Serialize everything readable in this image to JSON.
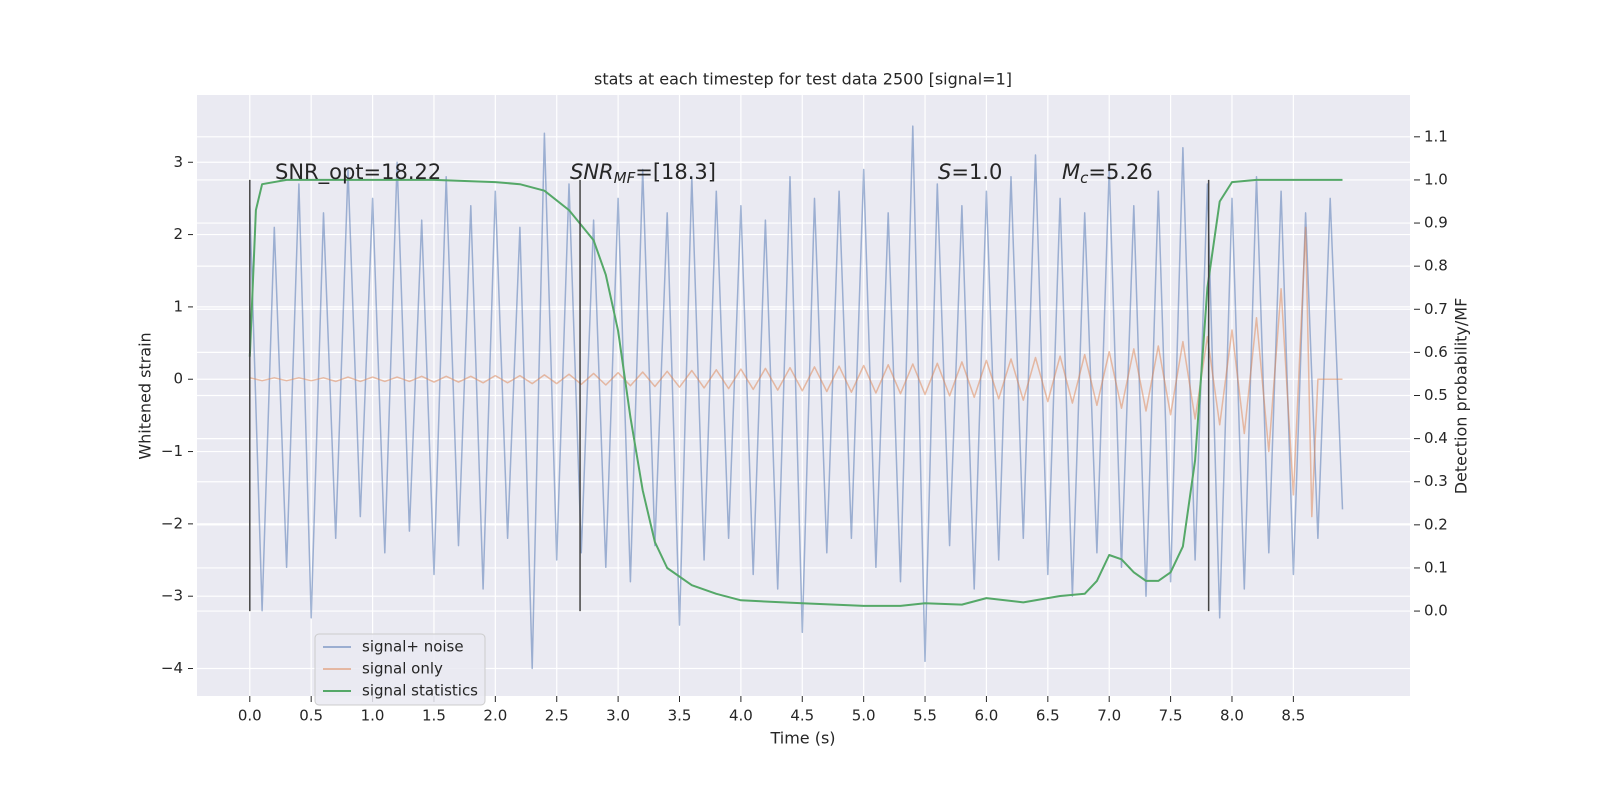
{
  "chart_data": {
    "type": "line",
    "title": "stats at each timestep for test data 2500 [signal=1]",
    "xlabel": "Time (s)",
    "ylabel": "Whitened strain",
    "y2label": "Detection probability/MF",
    "xlim": [
      -0.43,
      9.45
    ],
    "ylim": [
      -4.38,
      3.93
    ],
    "y2lim": [
      -0.197,
      1.197
    ],
    "xticks": [
      {
        "value": 0,
        "label": "0.0"
      },
      0.5,
      {
        "value": 1,
        "label": "1.0"
      },
      1.5,
      {
        "value": 2,
        "label": "2.0"
      },
      2.5,
      {
        "value": 3,
        "label": "3.0"
      },
      3.5,
      {
        "value": 4,
        "label": "4.0"
      },
      4.5,
      {
        "value": 5,
        "label": "5.0"
      },
      5.5,
      {
        "value": 6,
        "label": "6.0"
      },
      6.5,
      {
        "value": 7,
        "label": "7.0"
      },
      7.5,
      {
        "value": 8,
        "label": "8.0"
      },
      8.5
    ],
    "yticks": [
      {
        "value": -4,
        "label": "−4"
      },
      {
        "value": -3,
        "label": "−3"
      },
      {
        "value": -2,
        "label": "−2"
      },
      {
        "value": -1,
        "label": "−1"
      },
      0,
      1,
      2,
      3
    ],
    "y2ticks": [
      {
        "value": 0,
        "label": "0.0"
      },
      0.1,
      0.2,
      0.3,
      0.4,
      0.5,
      0.6,
      0.7,
      0.8,
      0.9,
      {
        "value": 1,
        "label": "1.0"
      },
      1.1
    ],
    "grid": true,
    "legend": "lower left",
    "annotations": [
      {
        "text": "SNR_opt=18.22"
      },
      {
        "text": "SNR",
        "sub": "MF",
        "tail": "=[18.3]"
      },
      {
        "text": "S",
        "tail": "=1.0"
      },
      {
        "text": "M",
        "sub": "c",
        "tail": "=5.26"
      }
    ],
    "vlines": {
      "x": [
        0,
        2.69,
        7.81
      ],
      "range": [
        0,
        1
      ],
      "axis": "y2",
      "color": "#444444"
    },
    "series": [
      {
        "name": "signal+ noise",
        "color": "#4c72b0",
        "alpha": 0.5,
        "x": [
          0,
          0.1,
          0.2,
          0.3,
          0.4,
          0.5,
          0.6,
          0.7,
          0.8,
          0.9,
          1,
          1.1,
          1.2,
          1.3,
          1.4,
          1.5,
          1.6,
          1.7,
          1.8,
          1.9,
          2,
          2.1,
          2.2,
          2.3,
          2.4,
          2.5,
          2.6,
          2.7,
          2.8,
          2.9,
          3,
          3.1,
          3.2,
          3.3,
          3.4,
          3.5,
          3.6,
          3.7,
          3.8,
          3.9,
          4,
          4.1,
          4.2,
          4.3,
          4.4,
          4.5,
          4.6,
          4.7,
          4.8,
          4.9,
          5,
          5.1,
          5.2,
          5.3,
          5.4,
          5.5,
          5.6,
          5.7,
          5.8,
          5.9,
          6,
          6.1,
          6.2,
          6.3,
          6.4,
          6.5,
          6.6,
          6.7,
          6.8,
          6.9,
          7,
          7.1,
          7.2,
          7.3,
          7.4,
          7.5,
          7.6,
          7.7,
          7.8,
          7.9,
          8,
          8.1,
          8.2,
          8.3,
          8.4,
          8.5,
          8.6,
          8.7,
          8.8,
          8.9
        ],
        "values": [
          2.4,
          -3.2,
          2.1,
          -2.6,
          2.7,
          -3.3,
          2.3,
          -2.2,
          2.9,
          -1.9,
          2.5,
          -2.4,
          3.0,
          -2.1,
          2.2,
          -2.7,
          2.8,
          -2.3,
          2.4,
          -2.9,
          2.6,
          -2.2,
          2.1,
          -4.0,
          3.4,
          -2.5,
          2.7,
          -2.4,
          2.2,
          -2.6,
          2.5,
          -2.8,
          2.9,
          -2.3,
          2.3,
          -3.4,
          2.8,
          -2.5,
          2.6,
          -2.2,
          2.4,
          -2.7,
          2.2,
          -2.9,
          2.8,
          -3.5,
          2.5,
          -2.4,
          2.6,
          -2.2,
          2.9,
          -2.6,
          2.3,
          -2.8,
          3.5,
          -3.9,
          2.7,
          -2.3,
          2.4,
          -2.9,
          2.6,
          -2.5,
          2.8,
          -2.2,
          3.1,
          -2.7,
          2.5,
          -3.0,
          2.3,
          -2.4,
          2.9,
          -2.6,
          2.4,
          -3.0,
          2.6,
          -2.8,
          3.2,
          -2.5,
          2.7,
          -3.3,
          2.5,
          -2.9,
          2.8,
          -2.4,
          2.6,
          -2.7,
          2.3,
          -2.2,
          2.5,
          -1.8
        ]
      },
      {
        "name": "signal only",
        "color": "#dd8452",
        "alpha": 0.5,
        "x": [
          0,
          0.1,
          0.2,
          0.3,
          0.4,
          0.5,
          0.6,
          0.7,
          0.8,
          0.9,
          1,
          1.1,
          1.2,
          1.3,
          1.4,
          1.5,
          1.6,
          1.7,
          1.8,
          1.9,
          2,
          2.1,
          2.2,
          2.3,
          2.4,
          2.5,
          2.6,
          2.7,
          2.8,
          2.9,
          3,
          3.1,
          3.2,
          3.3,
          3.4,
          3.5,
          3.6,
          3.7,
          3.8,
          3.9,
          4,
          4.1,
          4.2,
          4.3,
          4.4,
          4.5,
          4.6,
          4.7,
          4.8,
          4.9,
          5,
          5.1,
          5.2,
          5.3,
          5.4,
          5.5,
          5.6,
          5.7,
          5.8,
          5.9,
          6,
          6.1,
          6.2,
          6.3,
          6.4,
          6.5,
          6.6,
          6.7,
          6.8,
          6.9,
          7,
          7.1,
          7.2,
          7.3,
          7.4,
          7.5,
          7.6,
          7.7,
          7.8,
          7.9,
          8,
          8.1,
          8.2,
          8.3,
          8.4,
          8.5,
          8.6,
          8.65,
          8.7,
          8.9
        ],
        "values": [
          0.02,
          -0.02,
          0.02,
          -0.02,
          0.02,
          -0.02,
          0.02,
          -0.03,
          0.03,
          -0.03,
          0.03,
          -0.03,
          0.03,
          -0.03,
          0.04,
          -0.04,
          0.04,
          -0.04,
          0.04,
          -0.05,
          0.05,
          -0.05,
          0.05,
          -0.06,
          0.06,
          -0.06,
          0.07,
          -0.07,
          0.08,
          -0.08,
          0.09,
          -0.09,
          0.1,
          -0.1,
          0.11,
          -0.11,
          0.12,
          -0.12,
          0.13,
          -0.13,
          0.14,
          -0.14,
          0.15,
          -0.15,
          0.16,
          -0.16,
          0.17,
          -0.17,
          0.18,
          -0.18,
          0.19,
          -0.19,
          0.2,
          -0.2,
          0.21,
          -0.21,
          0.22,
          -0.23,
          0.24,
          -0.25,
          0.26,
          -0.27,
          0.28,
          -0.29,
          0.3,
          -0.31,
          0.32,
          -0.33,
          0.34,
          -0.36,
          0.38,
          -0.4,
          0.42,
          -0.44,
          0.46,
          -0.49,
          0.52,
          -0.55,
          0.59,
          -0.63,
          0.68,
          -0.75,
          0.85,
          -1.0,
          1.25,
          -1.6,
          2.1,
          -1.9,
          0,
          0
        ]
      },
      {
        "name": "signal statistics",
        "color": "#55a868",
        "alpha": 1,
        "axis": "y2",
        "x": [
          0,
          0.05,
          0.1,
          0.3,
          1,
          1.5,
          2,
          2.2,
          2.4,
          2.6,
          2.8,
          2.9,
          3,
          3.1,
          3.2,
          3.3,
          3.4,
          3.6,
          3.8,
          4,
          4.5,
          5,
          5.3,
          5.5,
          5.8,
          6,
          6.3,
          6.6,
          6.8,
          6.9,
          7,
          7.1,
          7.2,
          7.3,
          7.4,
          7.5,
          7.6,
          7.7,
          7.8,
          7.9,
          8,
          8.2,
          8.5,
          8.9
        ],
        "values": [
          0.59,
          0.93,
          0.99,
          1.0,
          1.0,
          1.0,
          0.995,
          0.99,
          0.975,
          0.93,
          0.86,
          0.78,
          0.65,
          0.45,
          0.28,
          0.16,
          0.1,
          0.06,
          0.04,
          0.025,
          0.018,
          0.012,
          0.012,
          0.018,
          0.015,
          0.03,
          0.02,
          0.035,
          0.04,
          0.07,
          0.13,
          0.12,
          0.09,
          0.07,
          0.07,
          0.09,
          0.15,
          0.35,
          0.75,
          0.95,
          0.995,
          1.0,
          1.0,
          1.0
        ]
      }
    ]
  }
}
